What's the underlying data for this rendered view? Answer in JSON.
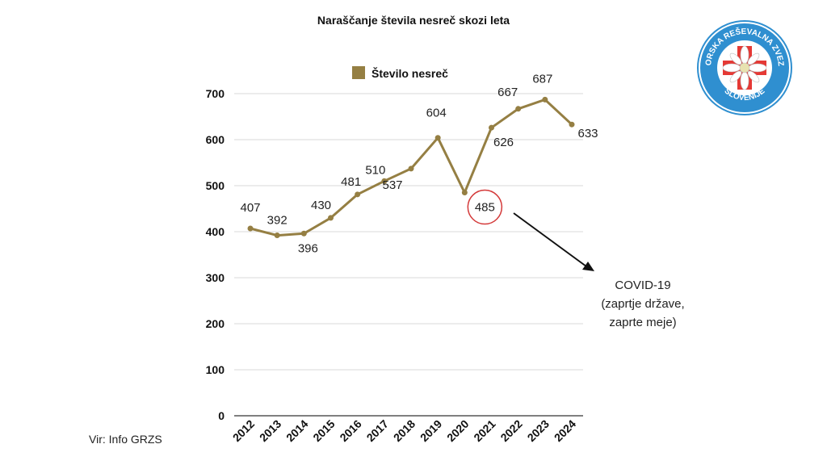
{
  "chart_data": {
    "type": "line",
    "title": "Naraščanje števila nesreč skozi leta",
    "categories": [
      "2012",
      "2013",
      "2014",
      "2015",
      "2016",
      "2017",
      "2018",
      "2019",
      "2020",
      "2021",
      "2022",
      "2023",
      "2024"
    ],
    "series": [
      {
        "name": "Število nesreč",
        "values": [
          407,
          392,
          396,
          430,
          481,
          510,
          537,
          604,
          485,
          626,
          667,
          687,
          633
        ],
        "color": "#957F43"
      }
    ],
    "ylim": [
      0,
      700
    ],
    "yticks": [
      "0",
      "100",
      "200",
      "300",
      "400",
      "500",
      "600",
      "700"
    ],
    "xlabel": "",
    "ylabel": "",
    "legend": "top-center",
    "annotation": {
      "highlight_year": "2020",
      "lines": [
        "COVID-19",
        "(zaprtje države,",
        "zaprte meje)"
      ]
    }
  },
  "source": "Vir: Info GRZS",
  "logo": {
    "text_top": "GORSKA REŠEVALNA ZVEZA",
    "text_bottom": "SLOVENIJE",
    "ring_color": "#2F8FD0",
    "cross_color": "#E53935"
  },
  "colors": {
    "line": "#957F43",
    "highlight": "#D43A3A"
  }
}
